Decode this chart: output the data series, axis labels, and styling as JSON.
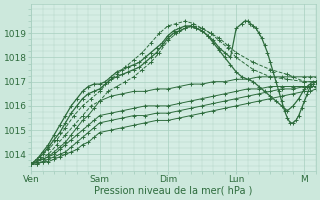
{
  "xlabel": "Pression niveau de la mer( hPa )",
  "bg_color": "#cce8dc",
  "plot_bg_color": "#d5ede4",
  "grid_color": "#a8cfc0",
  "line_color": "#2d6b3c",
  "ylim": [
    1013.3,
    1020.2
  ],
  "yticks": [
    1014,
    1015,
    1016,
    1017,
    1018,
    1019
  ],
  "xtick_labels": [
    "Ven",
    "Sam",
    "Dim",
    "Lun",
    "M"
  ],
  "xtick_positions": [
    0,
    24,
    48,
    72,
    96
  ],
  "xlim": [
    0,
    100
  ],
  "series": [
    {
      "x": [
        0,
        2,
        4,
        6,
        8,
        10,
        12,
        14,
        16,
        18,
        20,
        22,
        24,
        28,
        32,
        36,
        40,
        44,
        48,
        52,
        56,
        60,
        64,
        68,
        72,
        76,
        80,
        84,
        88,
        92,
        96,
        98,
        100
      ],
      "y": [
        1013.6,
        1013.7,
        1013.8,
        1013.9,
        1014.1,
        1014.3,
        1014.5,
        1014.8,
        1015.1,
        1015.4,
        1015.6,
        1015.9,
        1016.2,
        1016.4,
        1016.5,
        1016.6,
        1016.6,
        1016.7,
        1016.7,
        1016.8,
        1016.9,
        1016.9,
        1017.0,
        1017.0,
        1017.1,
        1017.1,
        1017.2,
        1017.2,
        1017.2,
        1017.2,
        1017.2,
        1017.2,
        1017.2
      ],
      "style": "solid"
    },
    {
      "x": [
        0,
        2,
        4,
        6,
        8,
        10,
        12,
        14,
        16,
        18,
        20,
        22,
        24,
        28,
        32,
        36,
        40,
        44,
        48,
        52,
        56,
        60,
        64,
        68,
        72,
        76,
        80,
        84,
        88,
        92,
        96,
        98,
        100
      ],
      "y": [
        1013.6,
        1013.7,
        1013.8,
        1013.9,
        1014.0,
        1014.2,
        1014.4,
        1014.6,
        1014.8,
        1015.0,
        1015.2,
        1015.4,
        1015.6,
        1015.7,
        1015.8,
        1015.9,
        1016.0,
        1016.0,
        1016.0,
        1016.1,
        1016.2,
        1016.3,
        1016.4,
        1016.5,
        1016.6,
        1016.7,
        1016.7,
        1016.8,
        1016.8,
        1016.8,
        1016.8,
        1016.8,
        1016.8
      ],
      "style": "solid"
    },
    {
      "x": [
        0,
        2,
        4,
        6,
        8,
        10,
        12,
        14,
        16,
        18,
        20,
        22,
        24,
        28,
        32,
        36,
        40,
        44,
        48,
        52,
        56,
        60,
        64,
        68,
        72,
        76,
        80,
        84,
        88,
        92,
        96,
        98,
        100
      ],
      "y": [
        1013.6,
        1013.6,
        1013.7,
        1013.8,
        1013.9,
        1014.0,
        1014.1,
        1014.3,
        1014.5,
        1014.7,
        1014.9,
        1015.1,
        1015.3,
        1015.4,
        1015.5,
        1015.6,
        1015.6,
        1015.7,
        1015.7,
        1015.8,
        1015.9,
        1016.0,
        1016.1,
        1016.2,
        1016.3,
        1016.4,
        1016.5,
        1016.6,
        1016.7,
        1016.7,
        1016.8,
        1016.8,
        1016.8
      ],
      "style": "solid"
    },
    {
      "x": [
        0,
        2,
        4,
        6,
        8,
        10,
        12,
        14,
        16,
        18,
        20,
        22,
        24,
        28,
        32,
        36,
        40,
        44,
        48,
        52,
        56,
        60,
        64,
        68,
        72,
        76,
        80,
        84,
        88,
        92,
        96,
        98,
        100
      ],
      "y": [
        1013.6,
        1013.6,
        1013.7,
        1013.7,
        1013.8,
        1013.9,
        1014.0,
        1014.1,
        1014.2,
        1014.4,
        1014.5,
        1014.7,
        1014.9,
        1015.0,
        1015.1,
        1015.2,
        1015.3,
        1015.4,
        1015.4,
        1015.5,
        1015.6,
        1015.7,
        1015.8,
        1015.9,
        1016.0,
        1016.1,
        1016.2,
        1016.3,
        1016.4,
        1016.5,
        1016.6,
        1016.6,
        1016.7
      ],
      "style": "solid"
    },
    {
      "x": [
        0,
        3,
        6,
        9,
        12,
        15,
        18,
        21,
        24,
        27,
        30,
        33,
        36,
        39,
        42,
        45,
        48,
        51,
        54,
        57,
        60,
        63,
        66,
        69,
        72,
        78,
        84,
        90,
        96,
        100
      ],
      "y": [
        1013.6,
        1013.8,
        1014.0,
        1014.4,
        1014.8,
        1015.2,
        1015.6,
        1016.0,
        1016.2,
        1016.6,
        1016.8,
        1017.0,
        1017.2,
        1017.5,
        1017.8,
        1018.2,
        1018.7,
        1019.0,
        1019.2,
        1019.3,
        1019.2,
        1019.0,
        1018.8,
        1018.5,
        1018.2,
        1017.8,
        1017.5,
        1017.3,
        1017.0,
        1017.0
      ],
      "style": "dashed"
    },
    {
      "x": [
        0,
        3,
        6,
        9,
        12,
        15,
        18,
        21,
        24,
        27,
        30,
        33,
        36,
        39,
        42,
        45,
        48,
        51,
        54,
        57,
        60,
        63,
        66,
        69,
        72,
        78,
        84,
        90,
        96,
        100
      ],
      "y": [
        1013.6,
        1013.9,
        1014.2,
        1014.6,
        1015.1,
        1015.6,
        1016.0,
        1016.3,
        1016.6,
        1017.0,
        1017.3,
        1017.6,
        1017.9,
        1018.2,
        1018.6,
        1019.0,
        1019.3,
        1019.4,
        1019.5,
        1019.4,
        1019.2,
        1019.0,
        1018.7,
        1018.4,
        1018.0,
        1017.5,
        1017.2,
        1017.1,
        1017.0,
        1017.0
      ],
      "style": "dashed"
    },
    {
      "x": [
        0,
        2,
        4,
        6,
        8,
        10,
        12,
        14,
        16,
        18,
        20,
        22,
        24,
        26,
        28,
        30,
        32,
        34,
        36,
        38,
        40,
        42,
        44,
        46,
        48,
        50,
        52,
        54,
        56,
        58,
        60,
        62,
        64,
        66,
        68,
        70,
        72,
        74,
        76,
        78,
        80,
        82,
        84,
        86,
        88,
        90,
        92,
        94,
        96,
        97,
        98,
        99,
        100
      ],
      "y": [
        1013.6,
        1013.8,
        1014.0,
        1014.3,
        1014.6,
        1014.9,
        1015.3,
        1015.7,
        1016.0,
        1016.3,
        1016.5,
        1016.6,
        1016.7,
        1016.9,
        1017.1,
        1017.2,
        1017.3,
        1017.4,
        1017.5,
        1017.6,
        1017.8,
        1018.0,
        1018.2,
        1018.5,
        1018.8,
        1019.0,
        1019.1,
        1019.2,
        1019.3,
        1019.2,
        1019.1,
        1018.9,
        1018.6,
        1018.3,
        1018.0,
        1017.7,
        1017.4,
        1017.2,
        1017.1,
        1017.0,
        1016.8,
        1016.6,
        1016.4,
        1016.2,
        1016.0,
        1015.8,
        1016.0,
        1016.3,
        1016.7,
        1016.8,
        1016.9,
        1017.0,
        1017.0
      ],
      "style": "solid_detail"
    },
    {
      "x": [
        0,
        2,
        4,
        6,
        8,
        10,
        12,
        14,
        16,
        18,
        20,
        22,
        24,
        26,
        28,
        30,
        32,
        34,
        36,
        38,
        40,
        42,
        44,
        46,
        48,
        50,
        52,
        54,
        56,
        58,
        60,
        62,
        64,
        66,
        68,
        70,
        72,
        74,
        75,
        76,
        77,
        78,
        79,
        80,
        81,
        82,
        83,
        84,
        85,
        86,
        87,
        88,
        89,
        90,
        91,
        92,
        93,
        94,
        95,
        96,
        97,
        98,
        99,
        100
      ],
      "y": [
        1013.6,
        1013.8,
        1014.1,
        1014.4,
        1014.8,
        1015.2,
        1015.6,
        1016.0,
        1016.3,
        1016.6,
        1016.8,
        1016.9,
        1016.9,
        1017.0,
        1017.2,
        1017.4,
        1017.5,
        1017.6,
        1017.7,
        1017.8,
        1018.0,
        1018.2,
        1018.4,
        1018.6,
        1018.9,
        1019.1,
        1019.2,
        1019.3,
        1019.3,
        1019.2,
        1019.1,
        1018.9,
        1018.7,
        1018.4,
        1018.2,
        1018.0,
        1019.2,
        1019.4,
        1019.5,
        1019.5,
        1019.4,
        1019.3,
        1019.2,
        1019.0,
        1018.8,
        1018.5,
        1018.2,
        1017.8,
        1017.4,
        1017.0,
        1016.6,
        1016.2,
        1015.8,
        1015.5,
        1015.3,
        1015.3,
        1015.4,
        1015.6,
        1015.9,
        1016.2,
        1016.5,
        1016.8,
        1016.9,
        1017.0
      ],
      "style": "solid_detail"
    }
  ]
}
